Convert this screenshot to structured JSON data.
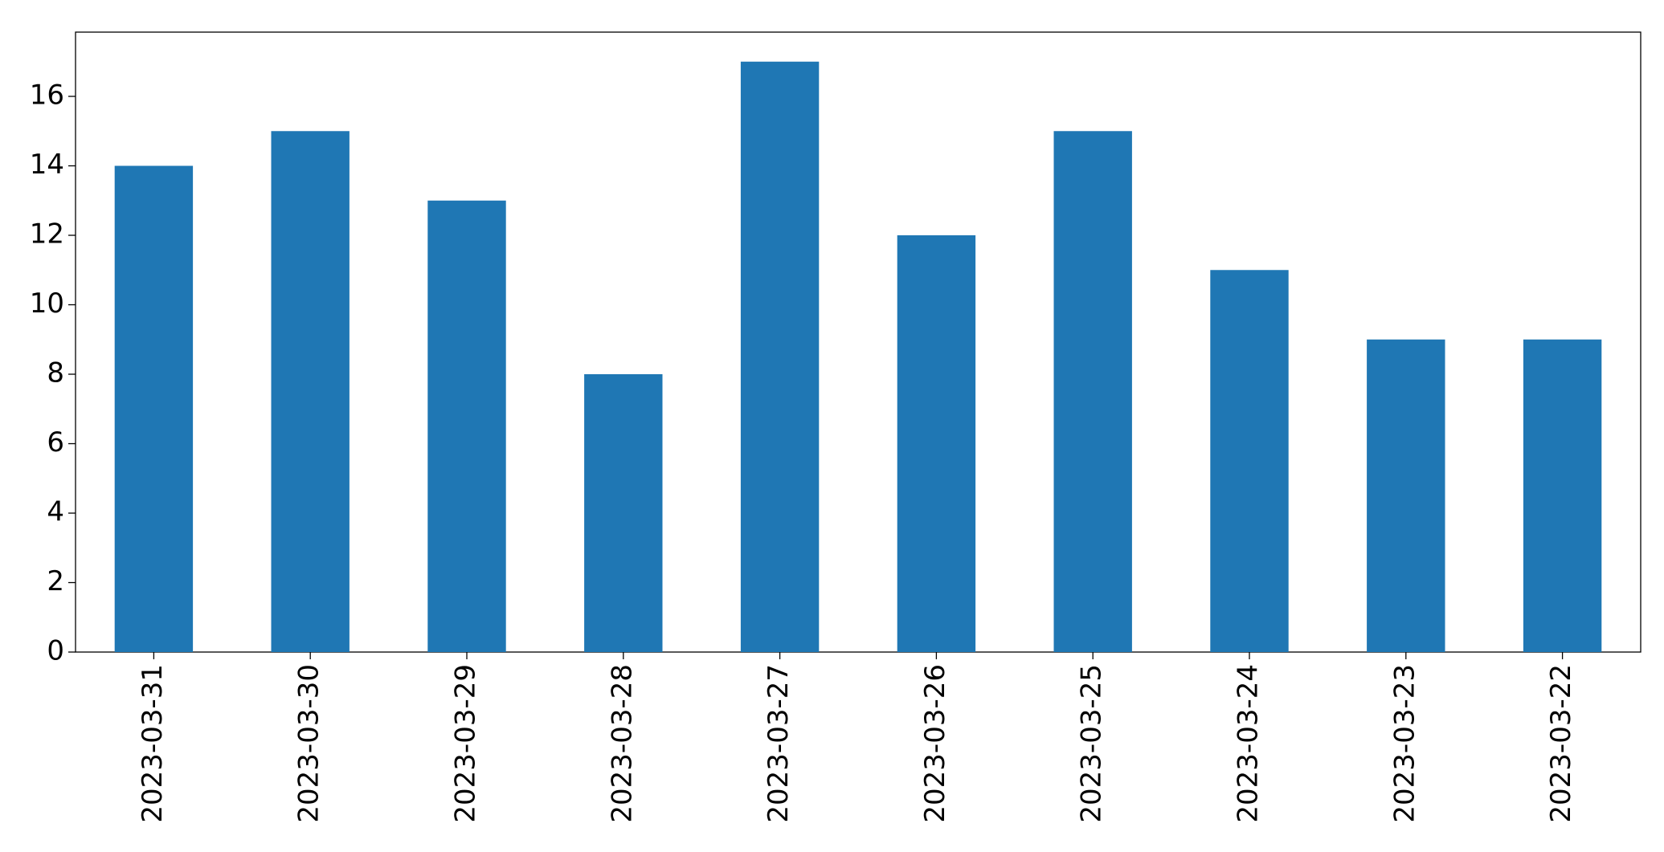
{
  "chart_data": {
    "type": "bar",
    "categories": [
      "2023-03-31",
      "2023-03-30",
      "2023-03-29",
      "2023-03-28",
      "2023-03-27",
      "2023-03-26",
      "2023-03-25",
      "2023-03-24",
      "2023-03-23",
      "2023-03-22"
    ],
    "values": [
      14,
      15,
      13,
      8,
      17,
      12,
      15,
      11,
      9,
      9
    ],
    "color": "#1f77b4",
    "ylim": [
      0,
      17.85
    ],
    "yticks": [
      0,
      2,
      4,
      6,
      8,
      10,
      12,
      14,
      16
    ],
    "grid": false
  }
}
